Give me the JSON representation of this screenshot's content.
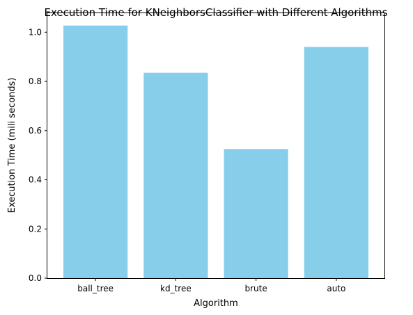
{
  "chart_data": {
    "type": "bar",
    "title": "Execution Time for KNeighborsClassifier with Different Algorithms",
    "xlabel": "Algorithm",
    "ylabel": "Execution Time (mili seconds)",
    "categories": [
      "ball_tree",
      "kd_tree",
      "brute",
      "auto"
    ],
    "values": [
      1.027,
      0.835,
      0.525,
      0.94
    ],
    "ylim": [
      0,
      1.08
    ],
    "yticks": [
      "0.0",
      "0.2",
      "0.4",
      "0.6",
      "0.8",
      "1.0"
    ],
    "bar_color": "#87ceeb",
    "grid": false,
    "legend": "none"
  }
}
